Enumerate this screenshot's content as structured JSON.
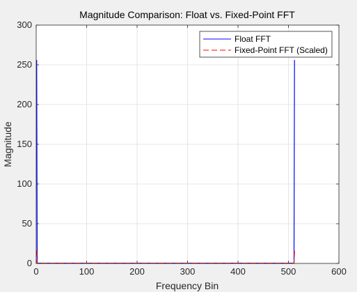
{
  "chart_data": {
    "type": "line",
    "title": "Magnitude Comparison: Float vs. Fixed-Point FFT",
    "xlabel": "Frequency Bin",
    "ylabel": "Magnitude",
    "xlim": [
      0,
      600
    ],
    "ylim": [
      0,
      300
    ],
    "xticks": [
      0,
      100,
      200,
      300,
      400,
      500,
      600
    ],
    "yticks": [
      0,
      50,
      100,
      150,
      200,
      250,
      300
    ],
    "grid": true,
    "legend_position": "top-right",
    "series": [
      {
        "name": "Float FFT",
        "color": "#0000ff",
        "style": "solid",
        "x": [
          1,
          2,
          3,
          4,
          509,
          510,
          511,
          512
        ],
        "y": [
          256,
          0.5,
          0.3,
          0.3,
          0.3,
          0.3,
          0.5,
          256
        ]
      },
      {
        "name": "Fixed-Point FFT (Scaled)",
        "color": "#ff0000",
        "style": "dashed",
        "x": [
          1,
          2,
          3,
          4,
          509,
          510,
          511,
          512
        ],
        "y": [
          16,
          0.5,
          0.3,
          0.3,
          0.3,
          0.3,
          0.5,
          16
        ]
      }
    ]
  }
}
